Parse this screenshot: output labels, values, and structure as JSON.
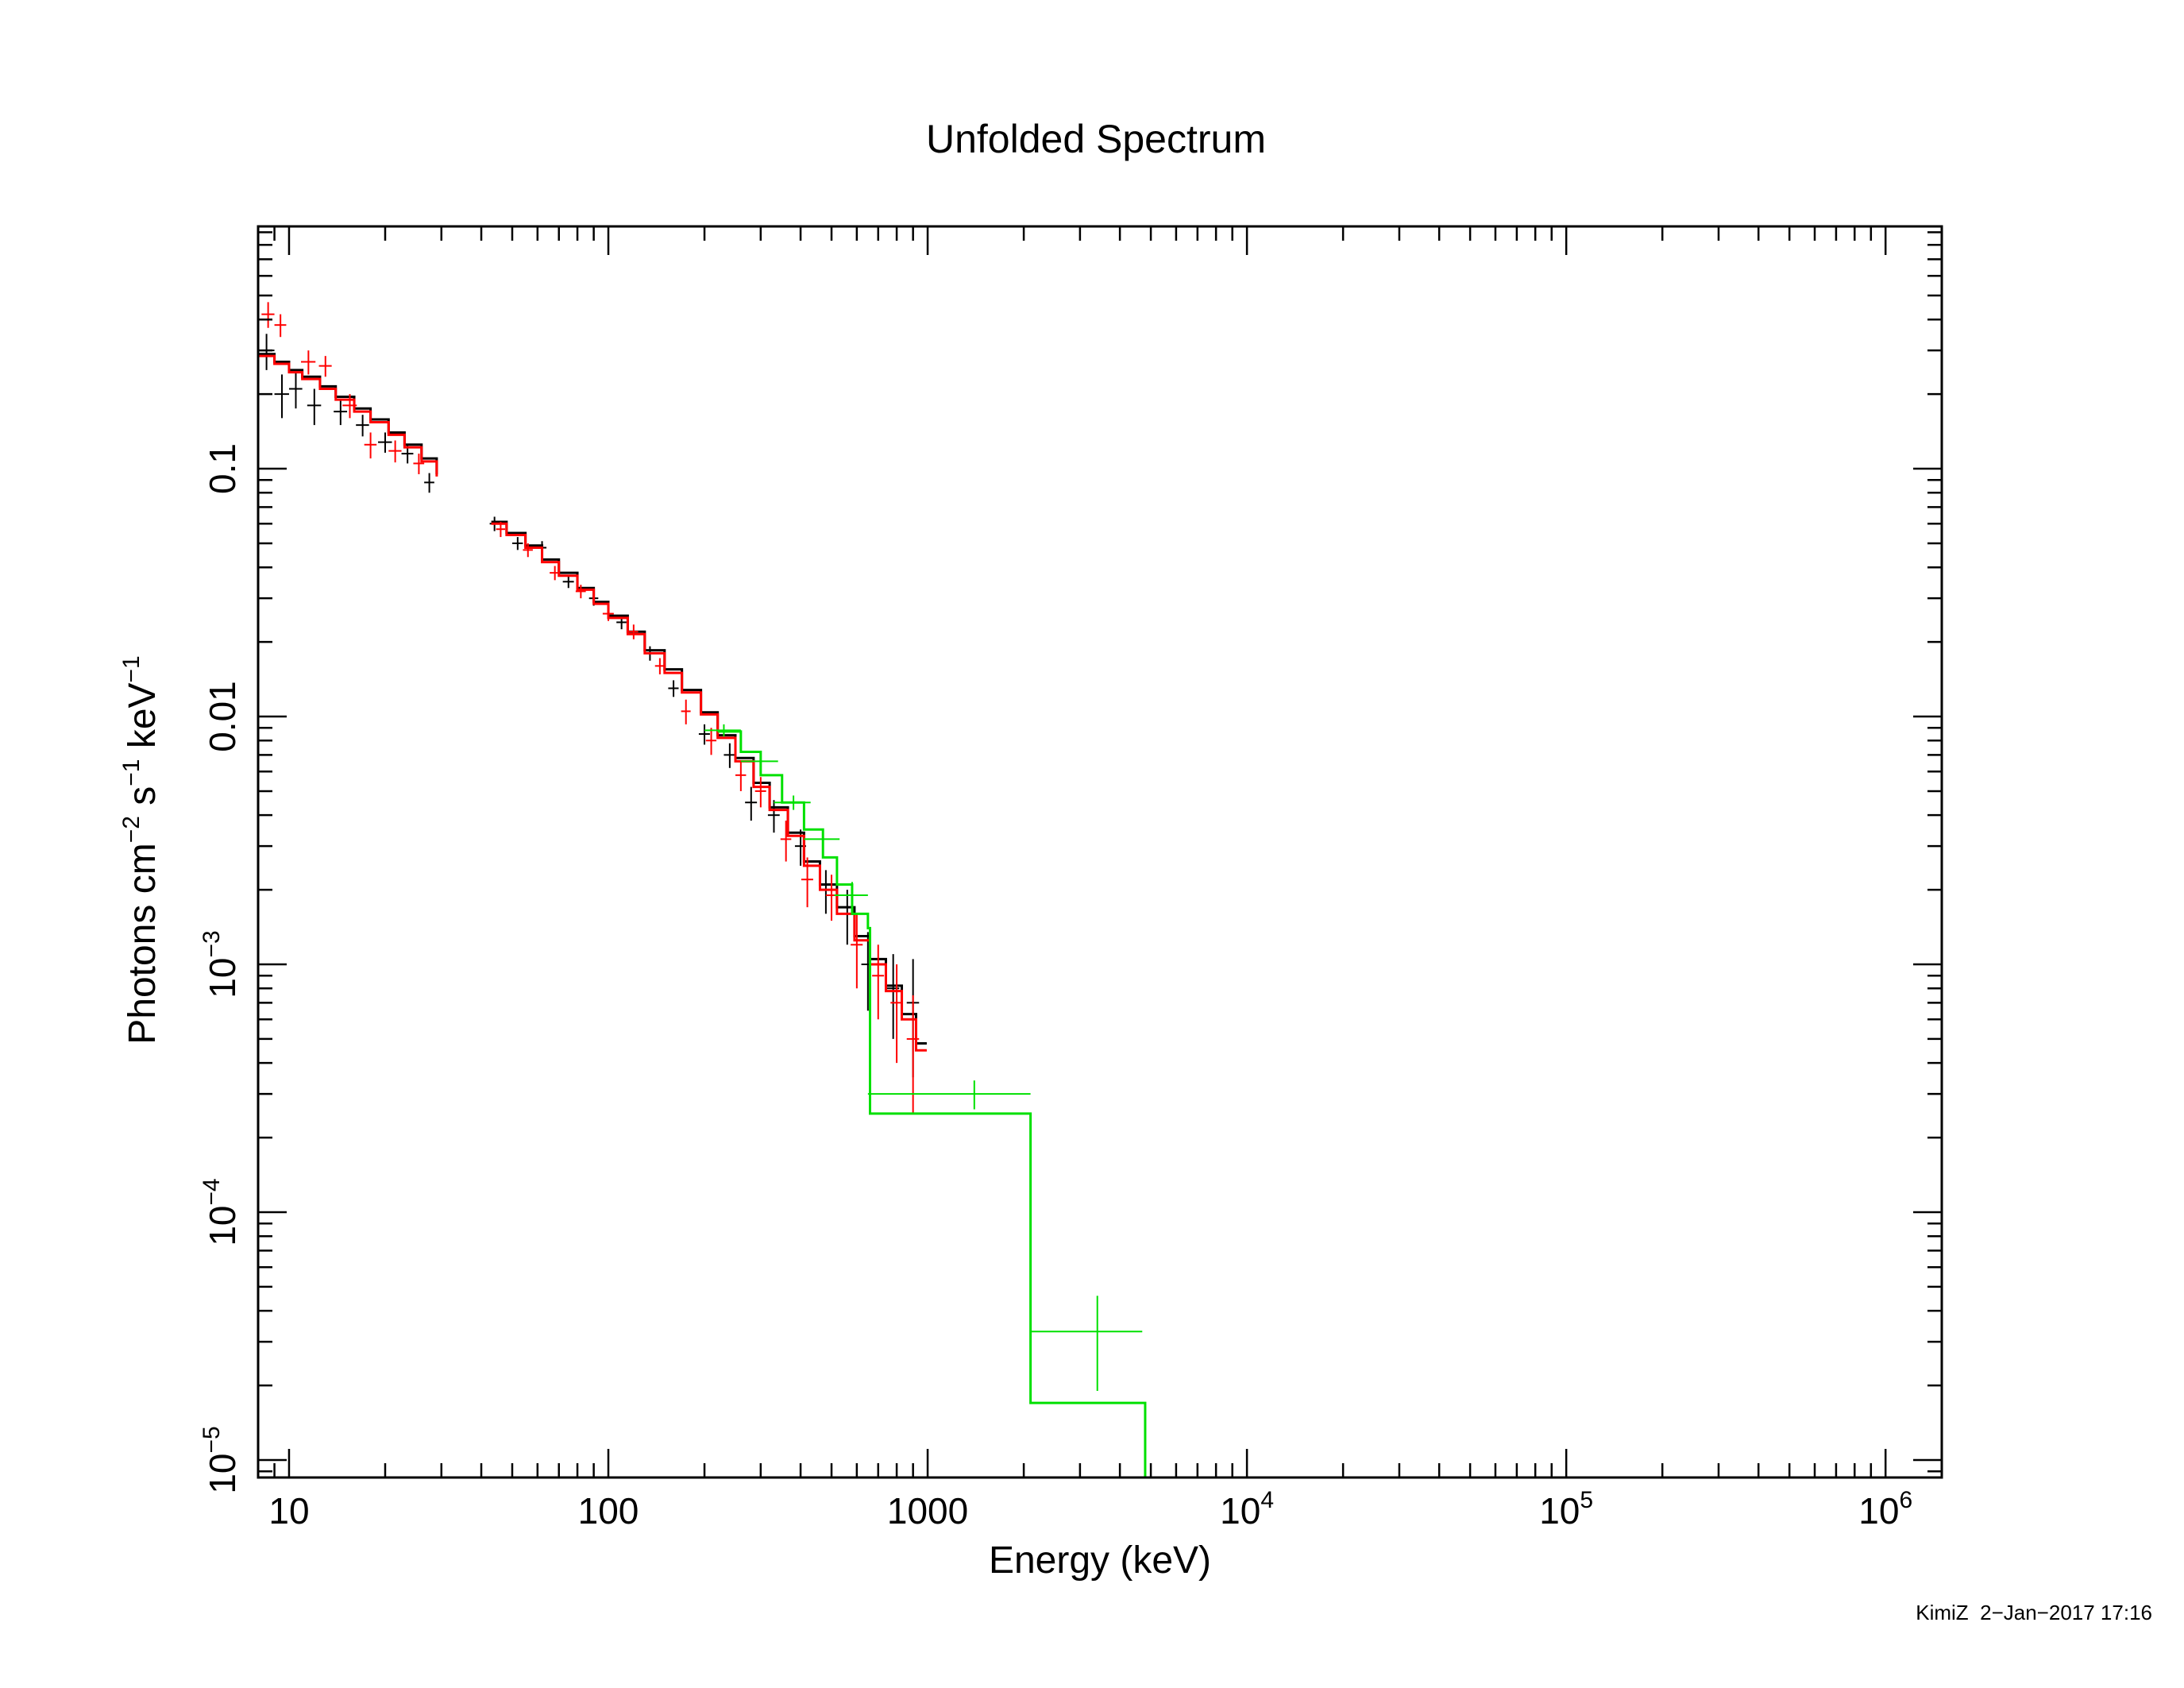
{
  "chart_data": {
    "type": "scatter",
    "title": "Unfolded Spectrum",
    "xlabel": "Energy (keV)",
    "ylabel": {
      "base": "Photons cm",
      "exp1": "−2",
      "mid1": " s",
      "exp2": "−1",
      "mid2": " keV",
      "exp3": "−1"
    },
    "xscale": "log",
    "yscale": "log",
    "xlim": [
      8,
      1500000
    ],
    "ylim": [
      8.5e-06,
      0.95
    ],
    "grid": false,
    "x_ticks": [
      {
        "value": 10,
        "base": "10",
        "exp": ""
      },
      {
        "value": 100,
        "base": "100",
        "exp": ""
      },
      {
        "value": 1000,
        "base": "1000",
        "exp": ""
      },
      {
        "value": 10000,
        "base": "10",
        "exp": "4"
      },
      {
        "value": 100000,
        "base": "10",
        "exp": "5"
      },
      {
        "value": 1000000,
        "base": "10",
        "exp": "6"
      }
    ],
    "y_ticks": [
      {
        "value": 0.1,
        "base": "0.1",
        "exp": ""
      },
      {
        "value": 0.01,
        "base": "0.01",
        "exp": ""
      },
      {
        "value": 0.001,
        "base": "10",
        "exp": "−3"
      },
      {
        "value": 0.0001,
        "base": "10",
        "exp": "−4"
      },
      {
        "value": 1e-05,
        "base": "10",
        "exp": "−5"
      }
    ],
    "series": [
      {
        "color": "#000000",
        "points": [
          {
            "x": 8.5,
            "y": 0.3,
            "xerr": 0.5,
            "yerr": 0.05
          },
          {
            "x": 9.5,
            "y": 0.2,
            "xerr": 0.5,
            "yerr": 0.04
          },
          {
            "x": 10.5,
            "y": 0.21,
            "xerr": 0.5,
            "yerr": 0.035
          },
          {
            "x": 12.0,
            "y": 0.18,
            "xerr": 0.6,
            "yerr": 0.03
          },
          {
            "x": 14.5,
            "y": 0.17,
            "xerr": 0.7,
            "yerr": 0.02
          },
          {
            "x": 17.0,
            "y": 0.15,
            "xerr": 0.8,
            "yerr": 0.015
          },
          {
            "x": 20.0,
            "y": 0.128,
            "xerr": 1.0,
            "yerr": 0.012
          },
          {
            "x": 23.5,
            "y": 0.115,
            "xerr": 1.0,
            "yerr": 0.01
          },
          {
            "x": 27.5,
            "y": 0.088,
            "xerr": 1.0,
            "yerr": 0.008
          },
          {
            "x": 44,
            "y": 0.06,
            "xerr": 1.5,
            "yerr": 0.004
          },
          {
            "x": 52,
            "y": 0.05,
            "xerr": 2,
            "yerr": 0.003
          },
          {
            "x": 62,
            "y": 0.048,
            "xerr": 2,
            "yerr": 0.003
          },
          {
            "x": 75,
            "y": 0.035,
            "xerr": 3,
            "yerr": 0.002
          },
          {
            "x": 90,
            "y": 0.03,
            "xerr": 3,
            "yerr": 0.002
          },
          {
            "x": 110,
            "y": 0.024,
            "xerr": 4,
            "yerr": 0.0015
          },
          {
            "x": 135,
            "y": 0.018,
            "xerr": 5,
            "yerr": 0.0012
          },
          {
            "x": 160,
            "y": 0.013,
            "xerr": 6,
            "yerr": 0.001
          },
          {
            "x": 200,
            "y": 0.0085,
            "xerr": 8,
            "yerr": 0.0008
          },
          {
            "x": 240,
            "y": 0.007,
            "xerr": 10,
            "yerr": 0.0008
          },
          {
            "x": 280,
            "y": 0.0045,
            "xerr": 12,
            "yerr": 0.0007
          },
          {
            "x": 330,
            "y": 0.004,
            "xerr": 14,
            "yerr": 0.0006
          },
          {
            "x": 400,
            "y": 0.003,
            "xerr": 16,
            "yerr": 0.0005
          },
          {
            "x": 480,
            "y": 0.002,
            "xerr": 20,
            "yerr": 0.0004
          },
          {
            "x": 560,
            "y": 0.0016,
            "xerr": 24,
            "yerr": 0.0004
          },
          {
            "x": 650,
            "y": 0.001,
            "xerr": 30,
            "yerr": 0.00035
          },
          {
            "x": 780,
            "y": 0.0008,
            "xerr": 35,
            "yerr": 0.0003
          },
          {
            "x": 900,
            "y": 0.0007,
            "xerr": 40,
            "yerr": 0.00035
          }
        ],
        "model_steps": [
          [
            8,
            0.29
          ],
          [
            9,
            0.27
          ],
          [
            10,
            0.25
          ],
          [
            11,
            0.235
          ],
          [
            12.5,
            0.215
          ],
          [
            14,
            0.195
          ],
          [
            16,
            0.175
          ],
          [
            18,
            0.158
          ],
          [
            20.5,
            0.14
          ],
          [
            23,
            0.125
          ],
          [
            26,
            0.11
          ],
          [
            29,
            0.095
          ],
          [
            null,
            null
          ],
          [
            43,
            0.061
          ],
          [
            48,
            0.055
          ],
          [
            55,
            0.049
          ],
          [
            62,
            0.043
          ],
          [
            70,
            0.038
          ],
          [
            80,
            0.033
          ],
          [
            90,
            0.029
          ],
          [
            100,
            0.0255
          ],
          [
            115,
            0.022
          ],
          [
            130,
            0.0185
          ],
          [
            150,
            0.0155
          ],
          [
            170,
            0.0128
          ],
          [
            195,
            0.0104
          ],
          [
            220,
            0.0084
          ],
          [
            250,
            0.0068
          ],
          [
            285,
            0.0054
          ],
          [
            320,
            0.0043
          ],
          [
            365,
            0.0034
          ],
          [
            410,
            0.0026
          ],
          [
            460,
            0.0021
          ],
          [
            520,
            0.0017
          ],
          [
            590,
            0.0013
          ],
          [
            660,
            0.00105
          ],
          [
            740,
            0.00082
          ],
          [
            830,
            0.00063
          ],
          [
            920,
            0.00048
          ]
        ]
      },
      {
        "color": "#ff0000",
        "points": [
          {
            "x": 8.6,
            "y": 0.42,
            "xerr": 0.4,
            "yerr": 0.05
          },
          {
            "x": 9.4,
            "y": 0.38,
            "xerr": 0.4,
            "yerr": 0.04
          },
          {
            "x": 11.5,
            "y": 0.27,
            "xerr": 0.6,
            "yerr": 0.03
          },
          {
            "x": 13.0,
            "y": 0.26,
            "xerr": 0.6,
            "yerr": 0.025
          },
          {
            "x": 15.5,
            "y": 0.18,
            "xerr": 0.8,
            "yerr": 0.02
          },
          {
            "x": 18.0,
            "y": 0.125,
            "xerr": 0.8,
            "yerr": 0.015
          },
          {
            "x": 21.5,
            "y": 0.118,
            "xerr": 1.0,
            "yerr": 0.012
          },
          {
            "x": 25.5,
            "y": 0.105,
            "xerr": 1.0,
            "yerr": 0.01
          },
          {
            "x": 46,
            "y": 0.057,
            "xerr": 1.5,
            "yerr": 0.004
          },
          {
            "x": 56,
            "y": 0.047,
            "xerr": 2,
            "yerr": 0.003
          },
          {
            "x": 68,
            "y": 0.038,
            "xerr": 2.5,
            "yerr": 0.0025
          },
          {
            "x": 82,
            "y": 0.032,
            "xerr": 3,
            "yerr": 0.002
          },
          {
            "x": 100,
            "y": 0.026,
            "xerr": 4,
            "yerr": 0.0017
          },
          {
            "x": 120,
            "y": 0.022,
            "xerr": 4,
            "yerr": 0.0015
          },
          {
            "x": 145,
            "y": 0.016,
            "xerr": 5,
            "yerr": 0.0012
          },
          {
            "x": 175,
            "y": 0.0105,
            "xerr": 6,
            "yerr": 0.0012
          },
          {
            "x": 210,
            "y": 0.008,
            "xerr": 8,
            "yerr": 0.001
          },
          {
            "x": 260,
            "y": 0.0058,
            "xerr": 10,
            "yerr": 0.0008
          },
          {
            "x": 300,
            "y": 0.005,
            "xerr": 12,
            "yerr": 0.0007
          },
          {
            "x": 360,
            "y": 0.0032,
            "xerr": 14,
            "yerr": 0.0006
          },
          {
            "x": 420,
            "y": 0.0022,
            "xerr": 18,
            "yerr": 0.0005
          },
          {
            "x": 500,
            "y": 0.0019,
            "xerr": 20,
            "yerr": 0.0004
          },
          {
            "x": 600,
            "y": 0.0012,
            "xerr": 26,
            "yerr": 0.0004
          },
          {
            "x": 700,
            "y": 0.0009,
            "xerr": 30,
            "yerr": 0.0003
          },
          {
            "x": 800,
            "y": 0.0007,
            "xerr": 35,
            "yerr": 0.0003
          },
          {
            "x": 900,
            "y": 0.0005,
            "xerr": 40,
            "yerr": 0.00025
          }
        ],
        "model_steps": [
          [
            8,
            0.285
          ],
          [
            9,
            0.265
          ],
          [
            10,
            0.245
          ],
          [
            11,
            0.23
          ],
          [
            12.5,
            0.21
          ],
          [
            14,
            0.19
          ],
          [
            16,
            0.17
          ],
          [
            18,
            0.154
          ],
          [
            20.5,
            0.137
          ],
          [
            23,
            0.122
          ],
          [
            26,
            0.107
          ],
          [
            29,
            0.093
          ],
          [
            null,
            null
          ],
          [
            43,
            0.06
          ],
          [
            48,
            0.054
          ],
          [
            55,
            0.048
          ],
          [
            62,
            0.042
          ],
          [
            70,
            0.037
          ],
          [
            80,
            0.0325
          ],
          [
            90,
            0.0285
          ],
          [
            100,
            0.025
          ],
          [
            115,
            0.0215
          ],
          [
            130,
            0.018
          ],
          [
            150,
            0.015
          ],
          [
            170,
            0.0125
          ],
          [
            195,
            0.0102
          ],
          [
            220,
            0.0082
          ],
          [
            250,
            0.0066
          ],
          [
            285,
            0.0052
          ],
          [
            320,
            0.0042
          ],
          [
            365,
            0.0033
          ],
          [
            410,
            0.0025
          ],
          [
            460,
            0.002
          ],
          [
            520,
            0.0016
          ],
          [
            590,
            0.00125
          ],
          [
            660,
            0.001
          ],
          [
            740,
            0.00078
          ],
          [
            830,
            0.0006
          ],
          [
            920,
            0.00045
          ]
        ]
      },
      {
        "color": "#00e000",
        "points": [
          {
            "x": 230,
            "y": 0.0088,
            "xerr": 30,
            "yerr": 0.0005
          },
          {
            "x": 300,
            "y": 0.0066,
            "xerr": 40,
            "yerr": 0.0004
          },
          {
            "x": 380,
            "y": 0.0045,
            "xerr": 50,
            "yerr": 0.0003
          },
          {
            "x": 470,
            "y": 0.0032,
            "xerr": 60,
            "yerr": 0.00025
          },
          {
            "x": 580,
            "y": 0.0019,
            "xerr": 70,
            "yerr": 0.00025
          },
          {
            "x": 1400,
            "y": 0.0003,
            "xerr_lo": 750,
            "xerr_hi": 700,
            "yerr": 4e-05
          },
          {
            "x": 3400,
            "y": 3.3e-05,
            "xerr_lo": 1300,
            "xerr_hi": 1300,
            "yerr_lo": 1.4e-05,
            "yerr_hi": 1.3e-05
          }
        ],
        "model_steps": [
          [
            220,
            0.0087
          ],
          [
            260,
            0.0072
          ],
          [
            300,
            0.0058
          ],
          [
            350,
            0.0045
          ],
          [
            410,
            0.0035
          ],
          [
            470,
            0.0027
          ],
          [
            520,
            0.0021
          ],
          [
            580,
            0.0016
          ],
          [
            650,
            0.0014
          ],
          [
            660,
            0.00025
          ],
          [
            2100,
            1.7e-05
          ],
          [
            4800,
            8.5e-06
          ]
        ]
      }
    ]
  },
  "footer": {
    "stamp": "KimiZ  2−Jan−2017 17:16"
  }
}
